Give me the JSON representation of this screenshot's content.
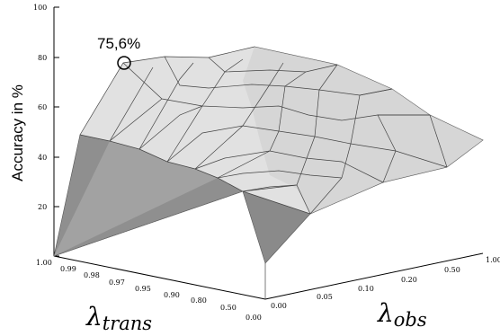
{
  "chart_data": {
    "type": "surface",
    "zlabel": "Accuracy in %",
    "zlim": [
      0,
      100
    ],
    "zticks": [
      "0",
      "20",
      "40",
      "60",
      "80",
      "100"
    ],
    "axis_trans": {
      "symbol": "λ",
      "subscript": "trans",
      "ticks": [
        "1.00",
        "0.99",
        "0.98",
        "0.97",
        "0.95",
        "0.90",
        "0.80",
        "0.50",
        "0.00"
      ]
    },
    "axis_obs": {
      "symbol": "λ",
      "subscript": "obs",
      "ticks": [
        "0.00",
        "0.05",
        "0.10",
        "0.20",
        "0.50",
        "1.00"
      ]
    },
    "annotation": {
      "text": "75,6%",
      "z": 75.6
    }
  }
}
